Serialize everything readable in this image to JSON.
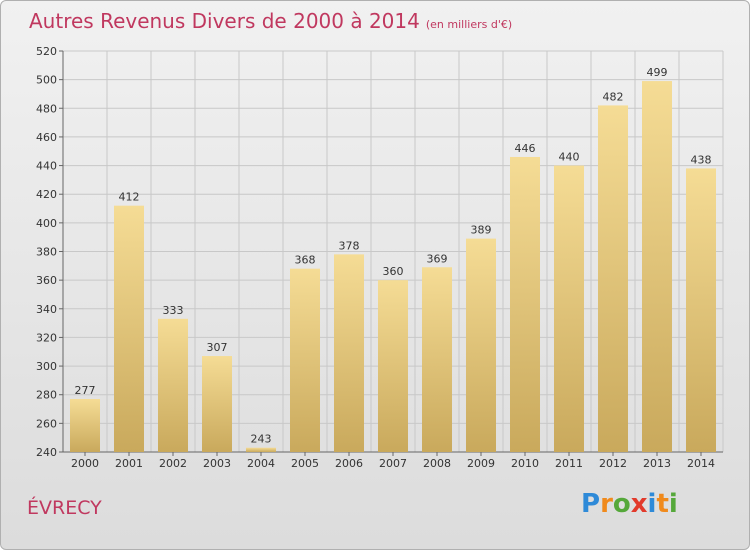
{
  "title": {
    "main": "Autres Revenus Divers de 2000 à 2014",
    "unit": "(en milliers d'€)"
  },
  "commune": "ÉVRECY",
  "logo": {
    "text": "Proxiti",
    "letters": [
      {
        "ch": "P",
        "color": "#2e8ad8"
      },
      {
        "ch": "r",
        "color": "#f08a1c"
      },
      {
        "ch": "o",
        "color": "#55a83a"
      },
      {
        "ch": "x",
        "color": "#e23a2b"
      },
      {
        "ch": "i",
        "color": "#2e8ad8"
      },
      {
        "ch": "t",
        "color": "#f08a1c"
      },
      {
        "ch": "i",
        "color": "#55a83a"
      }
    ]
  },
  "colors": {
    "title": "#c0385f",
    "bar_top": "#f5dc95",
    "bar_bottom": "#c9a95c",
    "grid": "#c8c8c8"
  },
  "chart_data": {
    "type": "bar",
    "title": "Autres Revenus Divers de 2000 à 2014",
    "subtitle": "(en milliers d'€)",
    "categories": [
      "2000",
      "2001",
      "2002",
      "2003",
      "2004",
      "2005",
      "2006",
      "2007",
      "2008",
      "2009",
      "2010",
      "2011",
      "2012",
      "2013",
      "2014"
    ],
    "values": [
      277,
      412,
      333,
      307,
      243,
      368,
      378,
      360,
      369,
      389,
      446,
      440,
      482,
      499,
      438
    ],
    "ylim": [
      240,
      520
    ],
    "yticks": [
      240,
      260,
      280,
      300,
      320,
      340,
      360,
      380,
      400,
      420,
      440,
      460,
      480,
      500,
      520
    ],
    "grid": true,
    "legend": "none"
  }
}
